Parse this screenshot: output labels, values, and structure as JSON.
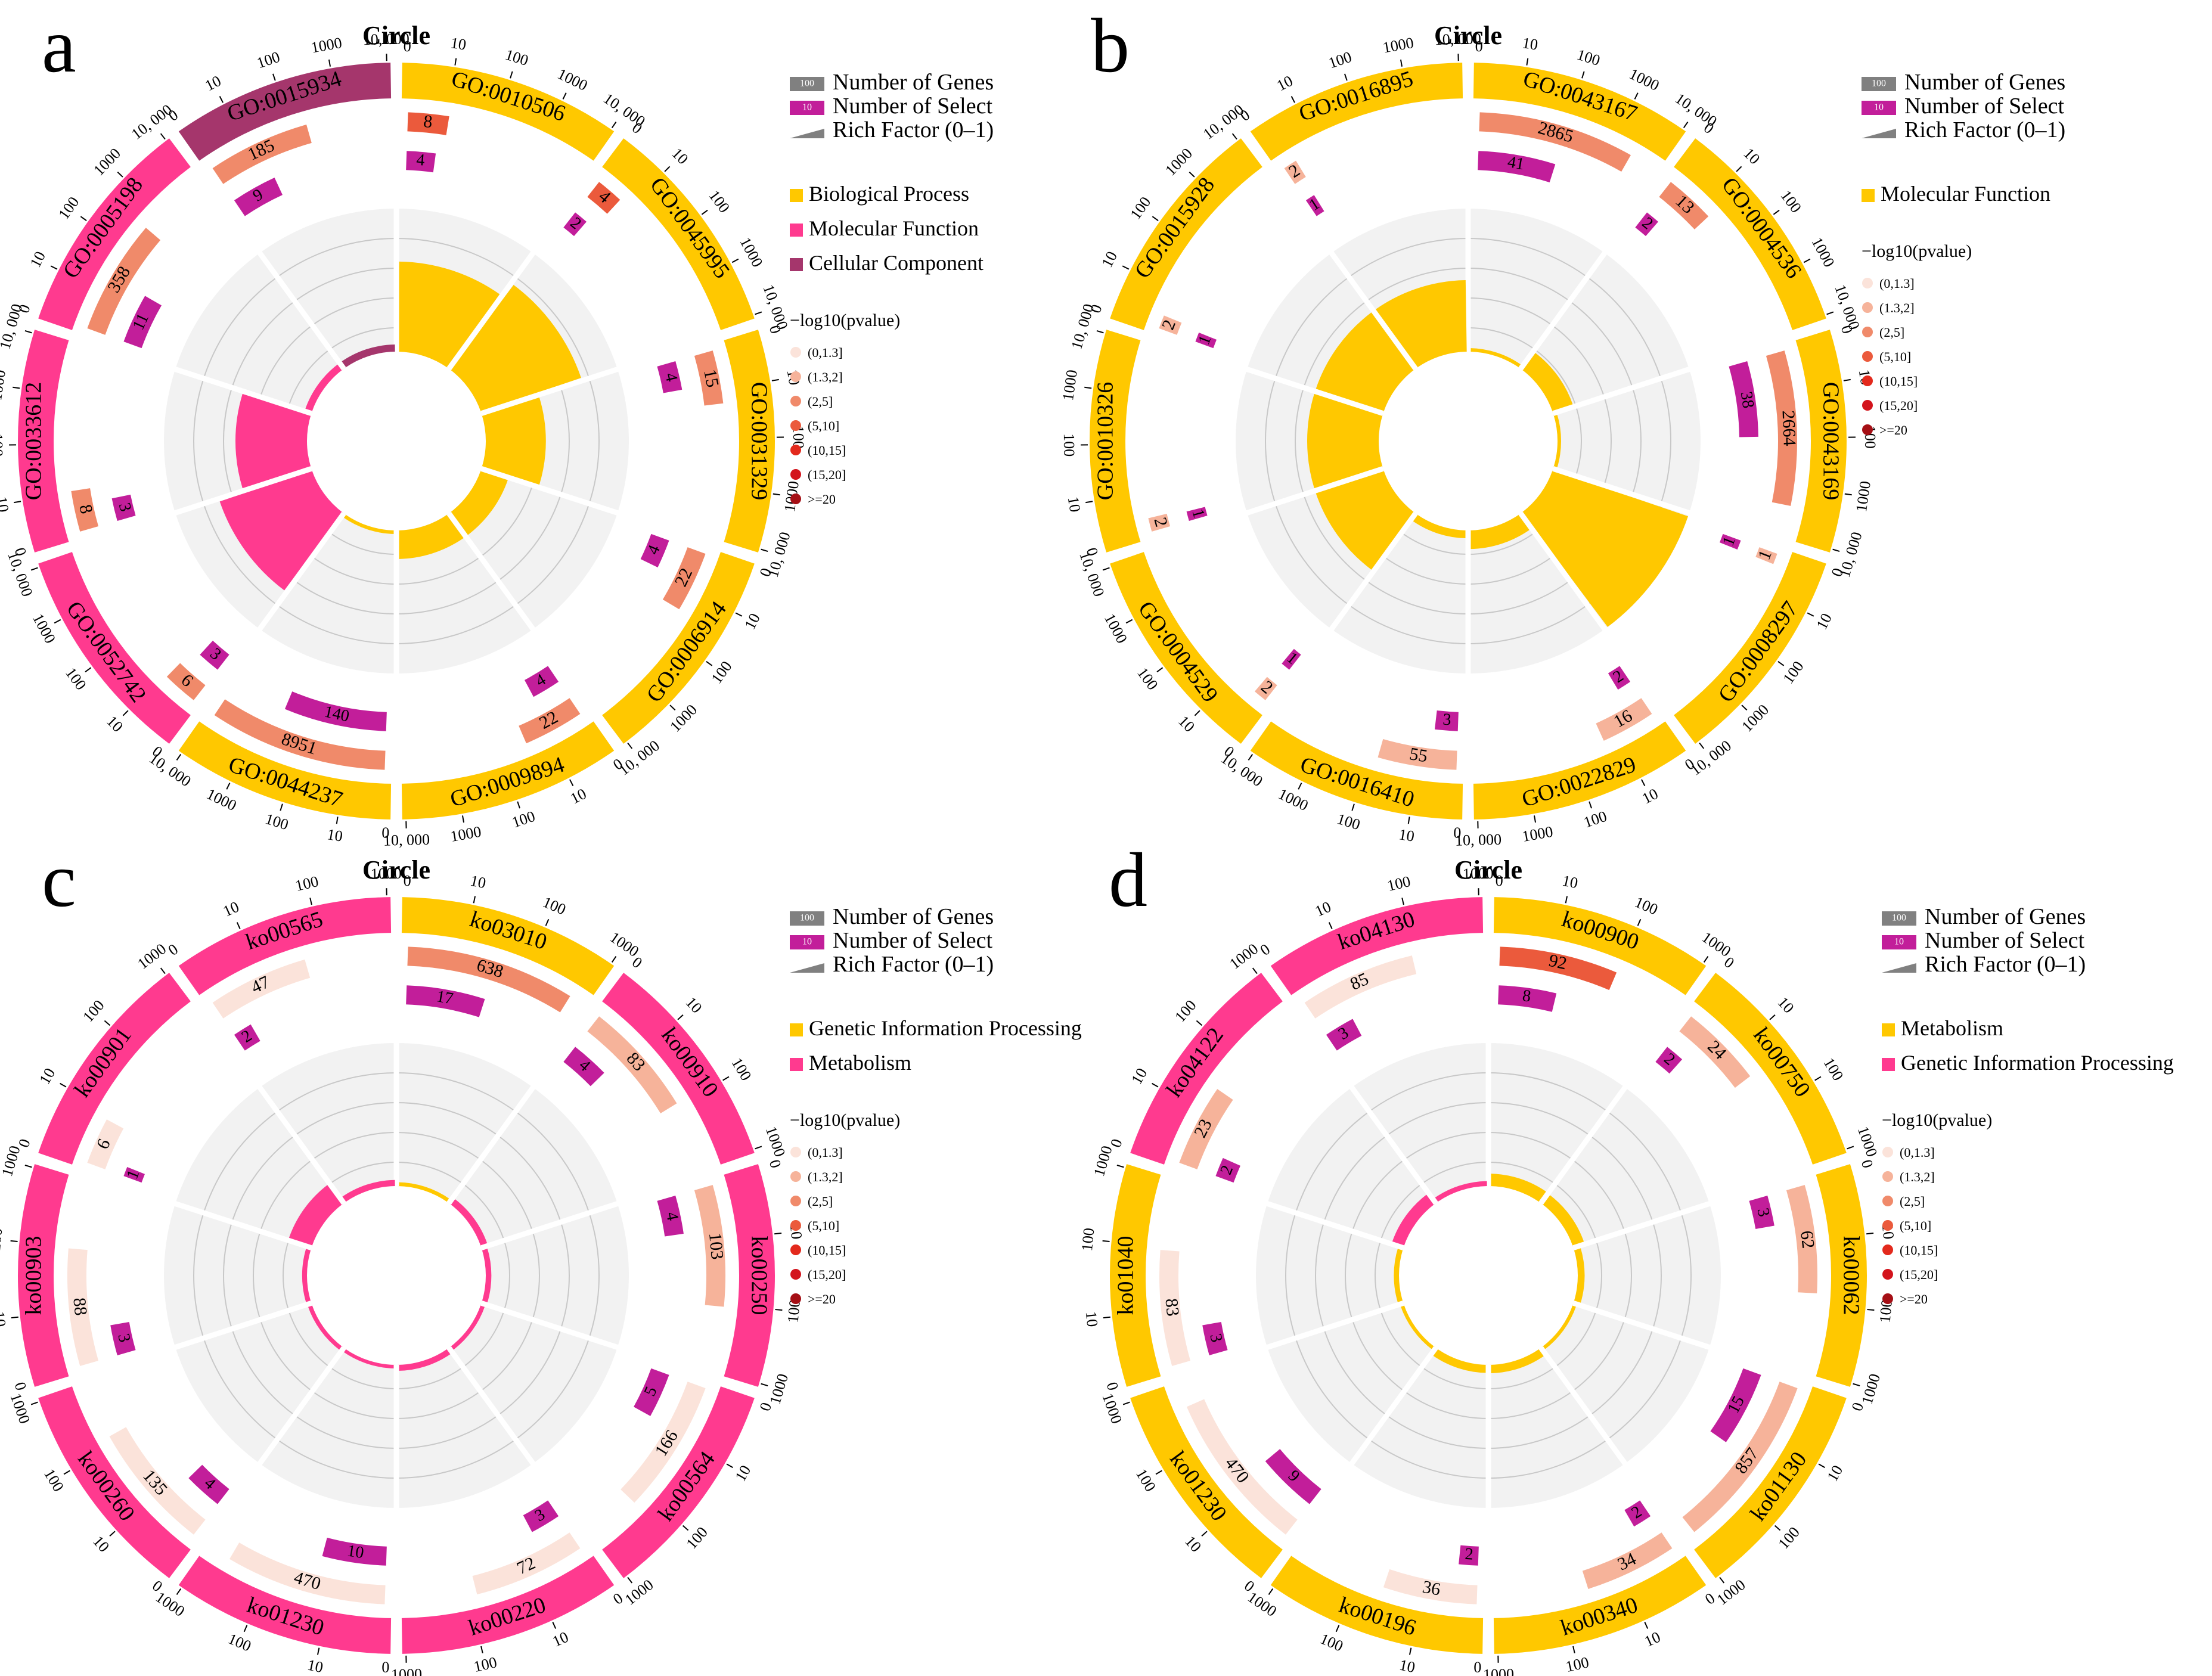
{
  "legend": {
    "size_items": [
      {
        "swatch": "100",
        "label": "Number of Genes",
        "color": "#808080"
      },
      {
        "swatch": "10",
        "label": "Number of Select",
        "color": "#C21E9A"
      },
      {
        "swatch": "",
        "label": "Rich Factor (0–1)",
        "color": "#808080"
      }
    ],
    "pvalue_title": "−log10(pvalue)",
    "pvalue_items": [
      {
        "label": "(0,1.3]",
        "color": "#FBE3DA"
      },
      {
        "label": "(1.3,2]",
        "color": "#F6B39A"
      },
      {
        "label": "(2,5]",
        "color": "#F08A6A"
      },
      {
        "label": "(5,10]",
        "color": "#EB5A3C"
      },
      {
        "label": "(10,15]",
        "color": "#E3291C"
      },
      {
        "label": "(15,20]",
        "color": "#D3141C"
      },
      {
        "label": ">=20",
        "color": "#A50F15"
      }
    ]
  },
  "chart_data": [
    {
      "type": "circle",
      "panel_label": "a",
      "title": "Circle",
      "categories": [
        {
          "name": "Biological Process",
          "color": "#FFC800"
        },
        {
          "name": "Molecular Function",
          "color": "#FF3A8F"
        },
        {
          "name": "Cellular Component",
          "color": "#A5366C"
        }
      ],
      "scale_ticks": [
        "10",
        "100",
        "1000",
        "10, 000"
      ],
      "scale_zero": "0",
      "terms": [
        {
          "id": "GO:0010506",
          "category": 0,
          "genes": 8,
          "select": 4,
          "pvalue_level": 3,
          "rich_factor": 0.63
        },
        {
          "id": "GO:0045995",
          "category": 0,
          "genes": 4,
          "select": 2,
          "pvalue_level": 3,
          "rich_factor": 0.74
        },
        {
          "id": "GO:0031329",
          "category": 0,
          "genes": 15,
          "select": 4,
          "pvalue_level": 2,
          "rich_factor": 0.42
        },
        {
          "id": "GO:0006914",
          "category": 0,
          "genes": 22,
          "select": 4,
          "pvalue_level": 2,
          "rich_factor": 0.2
        },
        {
          "id": "GO:0009894",
          "category": 0,
          "genes": 22,
          "select": 4,
          "pvalue_level": 2,
          "rich_factor": 0.2
        },
        {
          "id": "GO:0044237",
          "category": 0,
          "genes": 8951,
          "select": 140,
          "pvalue_level": 2,
          "rich_factor": 0.02
        },
        {
          "id": "GO:0052742",
          "category": 1,
          "genes": 6,
          "select": 3,
          "pvalue_level": 2,
          "rich_factor": 0.68
        },
        {
          "id": "GO:0033612",
          "category": 1,
          "genes": 8,
          "select": 3,
          "pvalue_level": 2,
          "rich_factor": 0.5
        },
        {
          "id": "GO:0005198",
          "category": 1,
          "genes": 358,
          "select": 11,
          "pvalue_level": 2,
          "rich_factor": 0.05
        },
        {
          "id": "GO:0015934",
          "category": 2,
          "genes": 185,
          "select": 9,
          "pvalue_level": 2,
          "rich_factor": 0.05
        }
      ]
    },
    {
      "type": "circle",
      "panel_label": "b",
      "title": "Circle",
      "categories": [
        {
          "name": "Molecular Function",
          "color": "#FFC800"
        }
      ],
      "scale_ticks": [
        "10",
        "100",
        "1000",
        "10, 000"
      ],
      "scale_zero": "0",
      "terms": [
        {
          "id": "GO:0043167",
          "category": 0,
          "genes": 2865,
          "select": 41,
          "pvalue_level": 2,
          "rich_factor": 0.014
        },
        {
          "id": "GO:0004536",
          "category": 0,
          "genes": 13,
          "select": 2,
          "pvalue_level": 2,
          "rich_factor": 0.15
        },
        {
          "id": "GO:0043169",
          "category": 0,
          "genes": 2664,
          "select": 38,
          "pvalue_level": 2,
          "rich_factor": 0.014
        },
        {
          "id": "GO:0008297",
          "category": 0,
          "genes": 1,
          "select": 1,
          "pvalue_level": 1,
          "rich_factor": 1.0
        },
        {
          "id": "GO:0022829",
          "category": 0,
          "genes": 16,
          "select": 2,
          "pvalue_level": 1,
          "rich_factor": 0.13
        },
        {
          "id": "GO:0016410",
          "category": 0,
          "genes": 55,
          "select": 3,
          "pvalue_level": 1,
          "rich_factor": 0.055
        },
        {
          "id": "GO:0004529",
          "category": 0,
          "genes": 2,
          "select": 1,
          "pvalue_level": 1,
          "rich_factor": 0.5
        },
        {
          "id": "GO:0010326",
          "category": 0,
          "genes": 2,
          "select": 1,
          "pvalue_level": 1,
          "rich_factor": 0.5
        },
        {
          "id": "GO:0015928",
          "category": 0,
          "genes": 2,
          "select": 1,
          "pvalue_level": 1,
          "rich_factor": 0.5
        },
        {
          "id": "GO:0016895",
          "category": 0,
          "genes": 2,
          "select": 1,
          "pvalue_level": 1,
          "rich_factor": 0.5
        }
      ]
    },
    {
      "type": "circle",
      "panel_label": "c",
      "title": "Circle",
      "categories": [
        {
          "name": "Genetic Information Processing",
          "color": "#FFC800"
        },
        {
          "name": "Metabolism",
          "color": "#FF3A8F"
        }
      ],
      "scale_ticks": [
        "10",
        "100",
        "1000"
      ],
      "scale_zero": "0",
      "terms": [
        {
          "id": "ko03010",
          "category": 0,
          "genes": 638,
          "select": 17,
          "pvalue_level": 2,
          "rich_factor": 0.027
        },
        {
          "id": "ko00910",
          "category": 1,
          "genes": 83,
          "select": 4,
          "pvalue_level": 1,
          "rich_factor": 0.048
        },
        {
          "id": "ko00250",
          "category": 1,
          "genes": 103,
          "select": 4,
          "pvalue_level": 1,
          "rich_factor": 0.039
        },
        {
          "id": "ko00564",
          "category": 1,
          "genes": 166,
          "select": 5,
          "pvalue_level": 0,
          "rich_factor": 0.03
        },
        {
          "id": "ko00220",
          "category": 1,
          "genes": 72,
          "select": 3,
          "pvalue_level": 0,
          "rich_factor": 0.042
        },
        {
          "id": "ko01230",
          "category": 1,
          "genes": 470,
          "select": 10,
          "pvalue_level": 0,
          "rich_factor": 0.021
        },
        {
          "id": "ko00260",
          "category": 1,
          "genes": 135,
          "select": 4,
          "pvalue_level": 0,
          "rich_factor": 0.03
        },
        {
          "id": "ko00903",
          "category": 1,
          "genes": 88,
          "select": 3,
          "pvalue_level": 0,
          "rich_factor": 0.034
        },
        {
          "id": "ko00901",
          "category": 1,
          "genes": 6,
          "select": 1,
          "pvalue_level": 0,
          "rich_factor": 0.17
        },
        {
          "id": "ko00565",
          "category": 1,
          "genes": 47,
          "select": 2,
          "pvalue_level": 0,
          "rich_factor": 0.043
        }
      ]
    },
    {
      "type": "circle",
      "panel_label": "d",
      "title": "Circle",
      "categories": [
        {
          "name": "Metabolism",
          "color": "#FFC800"
        },
        {
          "name": "Genetic Information Processing",
          "color": "#FF3A8F"
        }
      ],
      "scale_ticks": [
        "10",
        "100",
        "1000"
      ],
      "scale_zero": "0",
      "terms": [
        {
          "id": "ko00900",
          "category": 0,
          "genes": 92,
          "select": 8,
          "pvalue_level": 3,
          "rich_factor": 0.087
        },
        {
          "id": "ko00750",
          "category": 0,
          "genes": 24,
          "select": 2,
          "pvalue_level": 1,
          "rich_factor": 0.083
        },
        {
          "id": "ko00062",
          "category": 0,
          "genes": 62,
          "select": 3,
          "pvalue_level": 1,
          "rich_factor": 0.048
        },
        {
          "id": "ko01130",
          "category": 0,
          "genes": 857,
          "select": 15,
          "pvalue_level": 1,
          "rich_factor": 0.018
        },
        {
          "id": "ko00340",
          "category": 0,
          "genes": 34,
          "select": 2,
          "pvalue_level": 1,
          "rich_factor": 0.059
        },
        {
          "id": "ko00196",
          "category": 0,
          "genes": 36,
          "select": 2,
          "pvalue_level": 0,
          "rich_factor": 0.056
        },
        {
          "id": "ko01230",
          "category": 0,
          "genes": 470,
          "select": 9,
          "pvalue_level": 0,
          "rich_factor": 0.019
        },
        {
          "id": "ko01040",
          "category": 0,
          "genes": 83,
          "select": 3,
          "pvalue_level": 0,
          "rich_factor": 0.036
        },
        {
          "id": "ko04122",
          "category": 1,
          "genes": 23,
          "select": 2,
          "pvalue_level": 1,
          "rich_factor": 0.087
        },
        {
          "id": "ko04130",
          "category": 1,
          "genes": 85,
          "select": 3,
          "pvalue_level": 0,
          "rich_factor": 0.035
        }
      ]
    }
  ]
}
